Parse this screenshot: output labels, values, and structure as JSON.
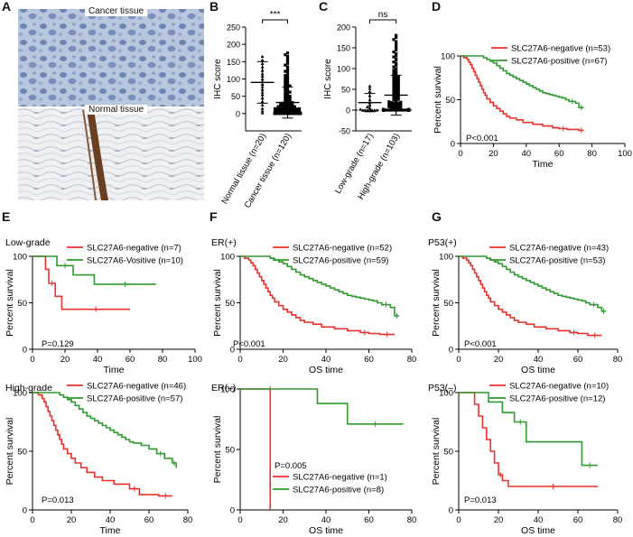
{
  "figure": {
    "panel_labels": [
      "A",
      "B",
      "C",
      "D",
      "E",
      "F",
      "G"
    ],
    "tissue_labels": {
      "cancer": "Cancer tissue",
      "normal": "Normal tissue"
    }
  },
  "colors": {
    "negative": "#e8312a",
    "positive": "#2e9a2e",
    "scatter": "#000000",
    "axis": "#000000",
    "he_blue": "#8fa6c9",
    "stain_brown": "#6b3f20"
  },
  "chart_data": [
    {
      "id": "B",
      "type": "scatter",
      "ylabel": "IHC score",
      "categories": [
        "Normal tissue (n=20)",
        "Cancer tissue (n=120)"
      ],
      "ylim": [
        -50,
        250
      ],
      "yticks": [
        0,
        50,
        100,
        150,
        200,
        250
      ],
      "annotation": "***",
      "groups": [
        {
          "name": "Normal tissue (n=20)",
          "mean": 90,
          "sd": 60,
          "values": [
            2,
            8,
            15,
            25,
            35,
            45,
            55,
            62,
            70,
            78,
            85,
            92,
            100,
            108,
            115,
            125,
            135,
            145,
            155,
            165
          ]
        },
        {
          "name": "Cancer tissue (n=120)",
          "mean": 32,
          "sd": 45,
          "values": [
            0,
            0,
            0,
            0,
            0,
            0,
            0,
            0,
            0,
            0,
            0,
            0,
            0,
            0,
            0,
            0,
            0,
            0,
            0,
            0,
            0,
            0,
            0,
            0,
            0,
            0,
            0,
            0,
            0,
            0,
            2,
            2,
            3,
            3,
            4,
            4,
            5,
            5,
            6,
            6,
            7,
            7,
            8,
            8,
            9,
            9,
            10,
            10,
            11,
            11,
            12,
            12,
            13,
            13,
            14,
            14,
            15,
            15,
            16,
            16,
            18,
            18,
            20,
            20,
            22,
            22,
            24,
            24,
            26,
            26,
            28,
            28,
            30,
            30,
            32,
            34,
            36,
            38,
            40,
            42,
            44,
            46,
            48,
            50,
            52,
            55,
            58,
            60,
            62,
            65,
            68,
            70,
            72,
            75,
            78,
            80,
            82,
            85,
            88,
            90,
            93,
            96,
            100,
            103,
            106,
            110,
            114,
            118,
            122,
            126,
            130,
            135,
            140,
            145,
            150,
            155,
            160,
            165,
            170,
            175
          ]
        }
      ]
    },
    {
      "id": "C",
      "type": "scatter",
      "ylabel": "IHC score",
      "categories": [
        "Low-grade (n=17)",
        "High-grade (n=103)"
      ],
      "ylim": [
        -50,
        200
      ],
      "yticks": [
        -50,
        0,
        50,
        100,
        150,
        200
      ],
      "annotation": "ns",
      "groups": [
        {
          "name": "Low-grade (n=17)",
          "mean": 18,
          "sd": 22,
          "values": [
            0,
            0,
            0,
            0,
            0,
            0,
            0,
            2,
            5,
            8,
            12,
            18,
            25,
            35,
            45,
            52,
            58
          ]
        },
        {
          "name": "High-grade (n=103)",
          "mean": 36,
          "sd": 48,
          "values": [
            0,
            0,
            0,
            0,
            0,
            0,
            0,
            0,
            0,
            0,
            0,
            0,
            0,
            0,
            0,
            0,
            0,
            0,
            0,
            0,
            0,
            0,
            0,
            0,
            0,
            0,
            0,
            0,
            2,
            2,
            3,
            4,
            5,
            6,
            7,
            8,
            9,
            10,
            11,
            12,
            13,
            14,
            15,
            16,
            17,
            18,
            19,
            20,
            22,
            24,
            26,
            28,
            30,
            32,
            34,
            36,
            38,
            40,
            42,
            44,
            46,
            48,
            50,
            52,
            54,
            56,
            58,
            60,
            62,
            64,
            66,
            68,
            70,
            72,
            74,
            76,
            78,
            80,
            82,
            85,
            88,
            90,
            93,
            96,
            100,
            104,
            108,
            112,
            116,
            120,
            124,
            128,
            132,
            136,
            140,
            145,
            150,
            155,
            160,
            165,
            170,
            175,
            180
          ]
        }
      ]
    },
    {
      "id": "D",
      "type": "line",
      "xlabel": "Time",
      "ylabel": "Percent survival",
      "xlim": [
        0,
        100
      ],
      "ylim": [
        0,
        100
      ],
      "xticks": [
        0,
        20,
        40,
        60,
        80,
        100
      ],
      "yticks": [
        0,
        50,
        100
      ],
      "pvalue": "P<0.001",
      "series": [
        {
          "name": "SLC27A6-negative (n=53)",
          "color_key": "negative",
          "x": [
            0,
            2,
            4,
            5,
            6,
            7,
            8,
            9,
            10,
            11,
            12,
            13,
            14,
            15,
            16,
            18,
            20,
            22,
            24,
            26,
            28,
            30,
            34,
            38,
            44,
            50,
            56,
            60,
            65,
            72,
            75
          ],
          "y": [
            100,
            98,
            96,
            93,
            90,
            86,
            82,
            78,
            74,
            70,
            66,
            62,
            58,
            55,
            51,
            47,
            43,
            40,
            37,
            34,
            31,
            29,
            27,
            24,
            22,
            20,
            18,
            17,
            16,
            15,
            15
          ]
        },
        {
          "name": "SLC27A6-positive (n=67)",
          "color_key": "positive",
          "x": [
            0,
            12,
            14,
            16,
            18,
            20,
            22,
            24,
            26,
            28,
            30,
            32,
            34,
            36,
            38,
            40,
            42,
            44,
            46,
            48,
            50,
            52,
            54,
            56,
            58,
            60,
            62,
            64,
            66,
            70,
            72,
            75
          ],
          "y": [
            100,
            100,
            98,
            96,
            94,
            92,
            89,
            86,
            83,
            80,
            78,
            76,
            74,
            72,
            70,
            68,
            66,
            64,
            62,
            60,
            58,
            57,
            56,
            55,
            54,
            53,
            52,
            50,
            48,
            46,
            41,
            41
          ]
        }
      ]
    },
    {
      "id": "E-low",
      "type": "line",
      "subtitle": "Low-grade",
      "xlabel": "Time",
      "ylabel": "Percent survival",
      "xlim": [
        0,
        100
      ],
      "ylim": [
        0,
        100
      ],
      "xticks": [
        0,
        20,
        40,
        60,
        80,
        100
      ],
      "yticks": [
        0,
        50,
        100
      ],
      "pvalue": "P=0.129",
      "series": [
        {
          "name": "SLC27A6-negative (n=7)",
          "color_key": "negative",
          "x": [
            0,
            8,
            10,
            14,
            18,
            60
          ],
          "y": [
            100,
            86,
            71,
            57,
            43,
            43
          ]
        },
        {
          "name": "SLC27A6-Vositive (n=10)",
          "color_key": "positive",
          "x": [
            0,
            15,
            25,
            38,
            76
          ],
          "y": [
            100,
            90,
            80,
            70,
            70
          ]
        }
      ]
    },
    {
      "id": "E-high",
      "type": "line",
      "subtitle": "High-grade",
      "xlabel": "Time",
      "ylabel": "Percent survival",
      "xlim": [
        0,
        80
      ],
      "ylim": [
        0,
        100
      ],
      "xticks": [
        0,
        20,
        40,
        60,
        80
      ],
      "yticks": [
        0,
        50,
        100
      ],
      "pvalue": "P=0.013",
      "series": [
        {
          "name": "SLC27A6-negative (n=46)",
          "color_key": "negative",
          "x": [
            0,
            3,
            5,
            6,
            7,
            8,
            9,
            10,
            11,
            12,
            13,
            14,
            15,
            16,
            18,
            20,
            22,
            25,
            28,
            32,
            36,
            42,
            50,
            55,
            65,
            72
          ],
          "y": [
            100,
            98,
            95,
            92,
            88,
            84,
            80,
            76,
            72,
            68,
            64,
            60,
            56,
            52,
            48,
            44,
            40,
            36,
            32,
            28,
            25,
            22,
            18,
            13,
            12,
            12
          ]
        },
        {
          "name": "SLC27A6-positive (n=57)",
          "color_key": "positive",
          "x": [
            0,
            12,
            14,
            16,
            18,
            20,
            22,
            24,
            26,
            28,
            30,
            32,
            34,
            36,
            38,
            40,
            42,
            44,
            46,
            48,
            50,
            52,
            56,
            60,
            64,
            68,
            72,
            74
          ],
          "y": [
            100,
            100,
            98,
            96,
            94,
            92,
            89,
            86,
            83,
            80,
            78,
            76,
            74,
            72,
            70,
            68,
            66,
            64,
            62,
            60,
            58,
            57,
            55,
            52,
            48,
            44,
            40,
            36
          ]
        }
      ]
    },
    {
      "id": "F-pos",
      "type": "line",
      "subtitle": "ER(+)",
      "xlabel": "OS time",
      "ylabel": "Percent survival",
      "xlim": [
        0,
        80
      ],
      "ylim": [
        0,
        100
      ],
      "xticks": [
        0,
        20,
        40,
        60,
        80
      ],
      "yticks": [
        0,
        50,
        100
      ],
      "pvalue": "P<0.001",
      "series": [
        {
          "name": "SLC27A6-negative (n=52)",
          "color_key": "negative",
          "x": [
            0,
            2,
            4,
            5,
            6,
            7,
            8,
            9,
            10,
            11,
            12,
            13,
            14,
            15,
            16,
            18,
            20,
            22,
            24,
            26,
            28,
            30,
            34,
            38,
            44,
            50,
            56,
            60,
            65,
            72
          ],
          "y": [
            100,
            98,
            96,
            93,
            90,
            86,
            82,
            78,
            74,
            70,
            66,
            62,
            58,
            55,
            51,
            47,
            43,
            40,
            37,
            34,
            31,
            29,
            27,
            24,
            22,
            20,
            18,
            17,
            16,
            16
          ]
        },
        {
          "name": "SLC27A6-positive (n=59)",
          "color_key": "positive",
          "x": [
            0,
            12,
            14,
            16,
            18,
            20,
            22,
            24,
            26,
            28,
            30,
            32,
            34,
            36,
            38,
            40,
            42,
            44,
            46,
            48,
            50,
            52,
            54,
            56,
            58,
            60,
            62,
            64,
            66,
            70,
            72,
            74
          ],
          "y": [
            100,
            100,
            98,
            96,
            94,
            92,
            89,
            86,
            83,
            80,
            78,
            76,
            74,
            72,
            70,
            68,
            66,
            64,
            62,
            60,
            58,
            57,
            56,
            55,
            54,
            53,
            52,
            50,
            48,
            45,
            36,
            36
          ]
        }
      ]
    },
    {
      "id": "F-neg",
      "type": "line",
      "subtitle": "ER(–)",
      "xlabel": "OS time",
      "ylabel": "Percent survival",
      "xlim": [
        0,
        80
      ],
      "ylim": [
        0,
        100
      ],
      "xticks": [
        0,
        20,
        40,
        60,
        80
      ],
      "yticks": [
        0,
        50,
        100
      ],
      "pvalue": "P=0.005",
      "series": [
        {
          "name": "SLC27A6-negative (n=1)",
          "color_key": "negative",
          "x": [
            0,
            14,
            14
          ],
          "y": [
            100,
            100,
            0
          ]
        },
        {
          "name": "SLC27A6-positive (n=8)",
          "color_key": "positive",
          "x": [
            0,
            36,
            50,
            76
          ],
          "y": [
            100,
            88,
            71,
            71
          ]
        }
      ]
    },
    {
      "id": "G-pos",
      "type": "line",
      "subtitle": "P53(+)",
      "xlabel": "OS time",
      "ylabel": "Percent survival",
      "xlim": [
        0,
        80
      ],
      "ylim": [
        0,
        100
      ],
      "xticks": [
        0,
        20,
        40,
        60,
        80
      ],
      "yticks": [
        0,
        50,
        100
      ],
      "pvalue": "P<0.001",
      "series": [
        {
          "name": "SLC27A6-negative (n=43)",
          "color_key": "negative",
          "x": [
            0,
            2,
            4,
            5,
            6,
            7,
            8,
            9,
            10,
            11,
            12,
            13,
            14,
            15,
            16,
            18,
            20,
            22,
            24,
            26,
            28,
            30,
            34,
            38,
            44,
            50,
            56,
            60,
            65,
            72
          ],
          "y": [
            100,
            98,
            96,
            93,
            90,
            86,
            82,
            78,
            74,
            70,
            66,
            62,
            58,
            55,
            51,
            47,
            43,
            40,
            37,
            34,
            31,
            29,
            27,
            24,
            22,
            20,
            18,
            17,
            15,
            15
          ]
        },
        {
          "name": "SLC27A6-positive (n=53)",
          "color_key": "positive",
          "x": [
            0,
            12,
            14,
            16,
            18,
            20,
            22,
            24,
            26,
            28,
            30,
            32,
            34,
            36,
            38,
            40,
            42,
            44,
            46,
            48,
            50,
            52,
            54,
            56,
            58,
            60,
            62,
            64,
            66,
            70,
            72,
            74
          ],
          "y": [
            100,
            100,
            98,
            96,
            94,
            92,
            89,
            86,
            83,
            80,
            78,
            76,
            74,
            72,
            70,
            68,
            66,
            64,
            62,
            60,
            58,
            57,
            56,
            55,
            54,
            53,
            52,
            50,
            48,
            45,
            41,
            41
          ]
        }
      ]
    },
    {
      "id": "G-neg",
      "type": "line",
      "subtitle": "P53(–)",
      "xlabel": "OS time",
      "ylabel": "Percent survival",
      "xlim": [
        0,
        80
      ],
      "ylim": [
        0,
        100
      ],
      "xticks": [
        0,
        20,
        40,
        60,
        80
      ],
      "yticks": [
        0,
        50,
        100
      ],
      "pvalue": "P=0.013",
      "series": [
        {
          "name": "SLC27A6-negative (n=10)",
          "color_key": "negative",
          "x": [
            0,
            8,
            10,
            12,
            14,
            16,
            18,
            20,
            22,
            25,
            70
          ],
          "y": [
            100,
            90,
            80,
            70,
            60,
            50,
            40,
            30,
            25,
            20,
            20
          ]
        },
        {
          "name": "SLC27A6-positive (n=12)",
          "color_key": "positive",
          "x": [
            0,
            15,
            22,
            28,
            34,
            62,
            70
          ],
          "y": [
            100,
            92,
            83,
            75,
            58,
            38,
            38
          ]
        }
      ]
    }
  ]
}
